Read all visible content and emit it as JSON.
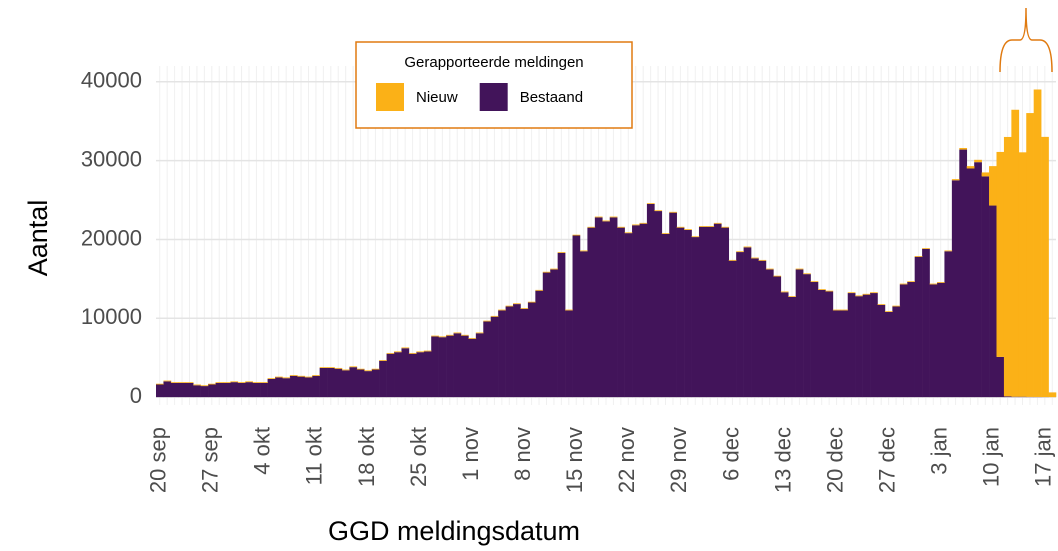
{
  "chart_data": {
    "type": "stacked-bar",
    "x_label": "GGD meldingsdatum",
    "y_label": "Aantal",
    "legend_title": "Gerapporteerde meldingen",
    "categories": [
      "20 sep",
      null,
      null,
      null,
      null,
      null,
      null,
      "27 sep",
      null,
      null,
      null,
      null,
      null,
      null,
      "4 okt",
      null,
      null,
      null,
      null,
      null,
      null,
      "11 okt",
      null,
      null,
      null,
      null,
      null,
      null,
      "18 okt",
      null,
      null,
      null,
      null,
      null,
      null,
      "25 okt",
      null,
      null,
      null,
      null,
      null,
      null,
      "1 nov",
      null,
      null,
      null,
      null,
      null,
      null,
      "8 nov",
      null,
      null,
      null,
      null,
      null,
      null,
      "15 nov",
      null,
      null,
      null,
      null,
      null,
      null,
      "22 nov",
      null,
      null,
      null,
      null,
      null,
      null,
      "29 nov",
      null,
      null,
      null,
      null,
      null,
      null,
      "6 dec",
      null,
      null,
      null,
      null,
      null,
      null,
      "13 dec",
      null,
      null,
      null,
      null,
      null,
      null,
      "20 dec",
      null,
      null,
      null,
      null,
      null,
      null,
      "27 dec",
      null,
      null,
      null,
      null,
      null,
      null,
      "3 jan",
      null,
      null,
      null,
      null,
      null,
      null,
      "10 jan",
      null,
      null,
      null,
      null,
      null,
      null,
      "17 jan",
      null
    ],
    "series": [
      {
        "name": "Nieuw",
        "color": "#fbb117",
        "values": [
          100,
          100,
          100,
          100,
          100,
          100,
          100,
          100,
          100,
          100,
          100,
          100,
          100,
          100,
          100,
          100,
          100,
          100,
          100,
          100,
          100,
          100,
          100,
          100,
          100,
          100,
          100,
          100,
          100,
          100,
          100,
          100,
          100,
          100,
          100,
          100,
          100,
          100,
          100,
          100,
          100,
          100,
          100,
          100,
          100,
          100,
          100,
          100,
          100,
          100,
          100,
          100,
          100,
          100,
          100,
          100,
          100,
          100,
          100,
          100,
          100,
          100,
          100,
          100,
          100,
          100,
          100,
          100,
          100,
          100,
          100,
          100,
          100,
          100,
          100,
          100,
          100,
          100,
          100,
          100,
          100,
          100,
          100,
          100,
          100,
          100,
          100,
          100,
          100,
          100,
          100,
          100,
          100,
          100,
          100,
          100,
          100,
          100,
          100,
          100,
          100,
          100,
          100,
          100,
          100,
          100,
          100,
          150,
          200,
          300,
          300,
          500,
          5000,
          26000,
          32900,
          36400,
          31000,
          36000,
          39000,
          33000,
          600
        ]
      },
      {
        "name": "Bestaand",
        "color": "#42145a",
        "values": [
          1600,
          2000,
          1800,
          1800,
          1800,
          1500,
          1400,
          1600,
          1800,
          1800,
          1900,
          1800,
          1900,
          1800,
          1800,
          2300,
          2500,
          2400,
          2700,
          2600,
          2500,
          2700,
          3700,
          3700,
          3600,
          3400,
          3800,
          3500,
          3300,
          3500,
          4600,
          5500,
          5700,
          6200,
          5500,
          5700,
          5800,
          7700,
          7600,
          7800,
          8100,
          7800,
          7400,
          8100,
          9600,
          10200,
          11000,
          11500,
          11800,
          11200,
          12000,
          13500,
          15800,
          16200,
          18300,
          11000,
          20500,
          18500,
          21500,
          22800,
          22300,
          22800,
          21500,
          20800,
          21800,
          22000,
          24500,
          23600,
          20700,
          23400,
          21500,
          21200,
          20300,
          21600,
          21600,
          22000,
          21500,
          17300,
          18400,
          19000,
          17600,
          17300,
          16200,
          15300,
          13300,
          12700,
          16200,
          15600,
          14600,
          13600,
          13400,
          11000,
          11000,
          13200,
          12800,
          13000,
          13200,
          11700,
          10800,
          11500,
          14300,
          14600,
          17800,
          18800,
          14300,
          14500,
          18500,
          27500,
          31400,
          29000,
          29800,
          28000,
          24300,
          5100,
          100,
          50,
          50,
          30,
          20,
          10,
          0
        ]
      }
    ],
    "ylim": [
      -1000,
      42000
    ],
    "yticks": [
      0,
      10000,
      20000,
      30000,
      40000
    ],
    "grid": true
  }
}
